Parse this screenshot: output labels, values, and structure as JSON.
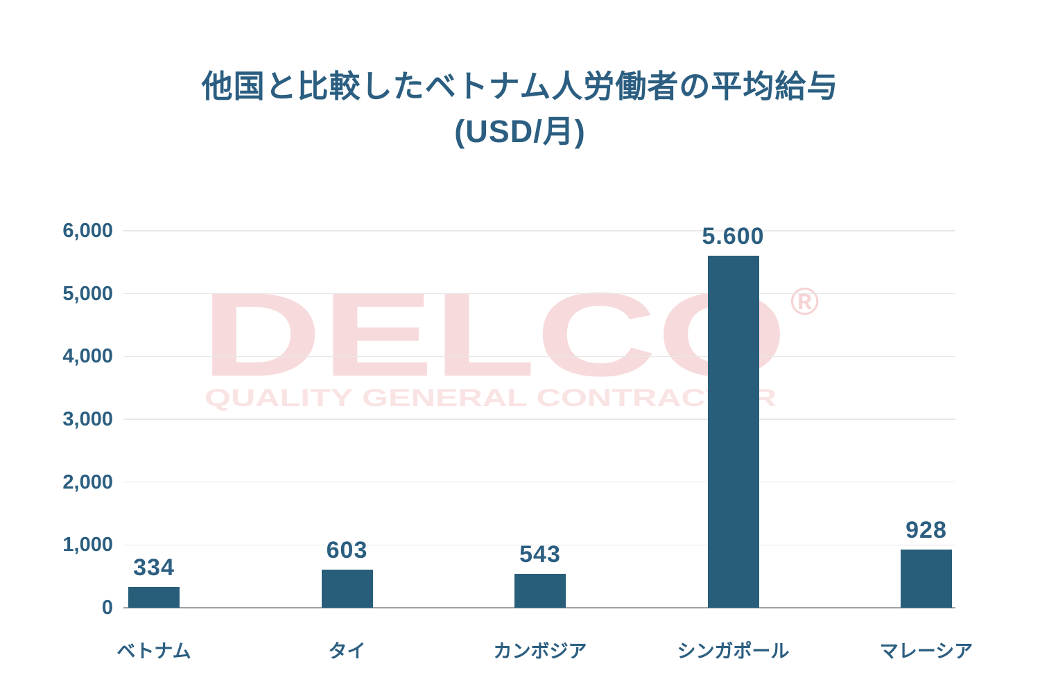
{
  "title": {
    "line1": "他国と比較したベトナム人労働者の平均給与",
    "line2": "(USD/月)"
  },
  "watermark": {
    "brand": "DELCO",
    "registered_mark": "®",
    "tagline": "QUALITY GENERAL CONTRACTOR"
  },
  "chart_data": {
    "type": "bar",
    "title": "他国と比較したベトナム人労働者の平均給与 (USD/月)",
    "categories": [
      "ベトナム",
      "タイ",
      "カンボジア",
      "シンガポール",
      "マレーシア"
    ],
    "values": [
      334,
      603,
      543,
      5600,
      928
    ],
    "value_labels": [
      "334",
      "603",
      "543",
      "5.600",
      "928"
    ],
    "xlabel": "",
    "ylabel": "",
    "ylim": [
      0,
      6000
    ],
    "ytick_step": 1000,
    "ytick_labels": [
      "0",
      "1,000",
      "2,000",
      "3,000",
      "4,000",
      "5,000",
      "6,000"
    ],
    "grid": true,
    "legend": false,
    "bar_color": "#295e7a",
    "text_color": "#2b5e80",
    "gridline_color": "#e8e8e8",
    "axis_line_color": "#a0a0a0",
    "watermark_color": "#d2232a"
  }
}
